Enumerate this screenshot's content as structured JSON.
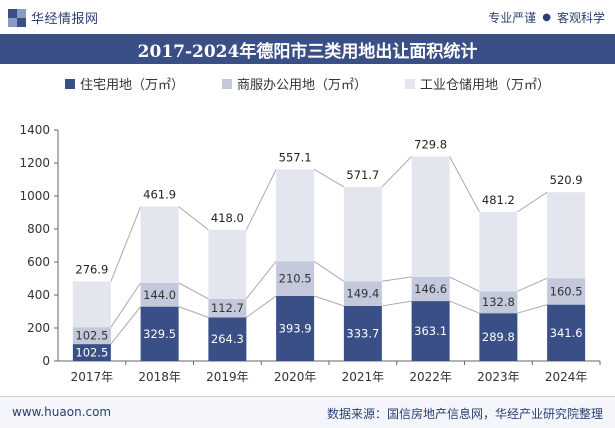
{
  "header": {
    "brand": "华经情报网",
    "slogan_left": "专业严谨",
    "slogan_right": "客观科学"
  },
  "title": "2017-2024年德阳市三类用地出让面积统计",
  "footer": {
    "url": "www.huaon.com",
    "source": "数据来源：国信房地产信息网，华经产业研究院整理"
  },
  "colors": {
    "series_1": "#3a4f86",
    "series_2": "#c3c9db",
    "series_3": "#e3e6ef",
    "header_bg": "#3a4f86"
  },
  "chart_data": {
    "type": "bar",
    "stacked": true,
    "categories": [
      "2017年",
      "2018年",
      "2019年",
      "2020年",
      "2021年",
      "2022年",
      "2023年",
      "2024年"
    ],
    "series": [
      {
        "name": "住宅用地（万㎡）",
        "values": [
          102.5,
          329.5,
          264.3,
          393.9,
          333.7,
          363.1,
          289.8,
          341.6
        ],
        "labels": [
          "102.5",
          "329.5",
          "264.3",
          "393.9",
          "333.7",
          "363.1",
          "289.8",
          "341.6"
        ]
      },
      {
        "name": "商服办公用地（万㎡）",
        "values": [
          102.5,
          144.0,
          112.7,
          210.5,
          149.4,
          146.6,
          132.8,
          160.5
        ],
        "labels": [
          "102.5",
          "144.0",
          "112.7",
          "210.5",
          "149.4",
          "146.6",
          "132.8",
          "160.5"
        ]
      },
      {
        "name": "工业仓储用地（万㎡）",
        "values": [
          276.9,
          461.9,
          418.0,
          557.1,
          571.7,
          729.8,
          481.2,
          520.9
        ],
        "labels": [
          "276.9",
          "461.9",
          "418.0",
          "557.1",
          "571.7",
          "729.8",
          "481.2",
          "520.9"
        ]
      }
    ],
    "yticks": [
      "0",
      "200",
      "400",
      "600",
      "800",
      "1000",
      "1200",
      "1400"
    ],
    "ylim": [
      0,
      1400
    ],
    "grid": false,
    "legend_position": "top"
  }
}
